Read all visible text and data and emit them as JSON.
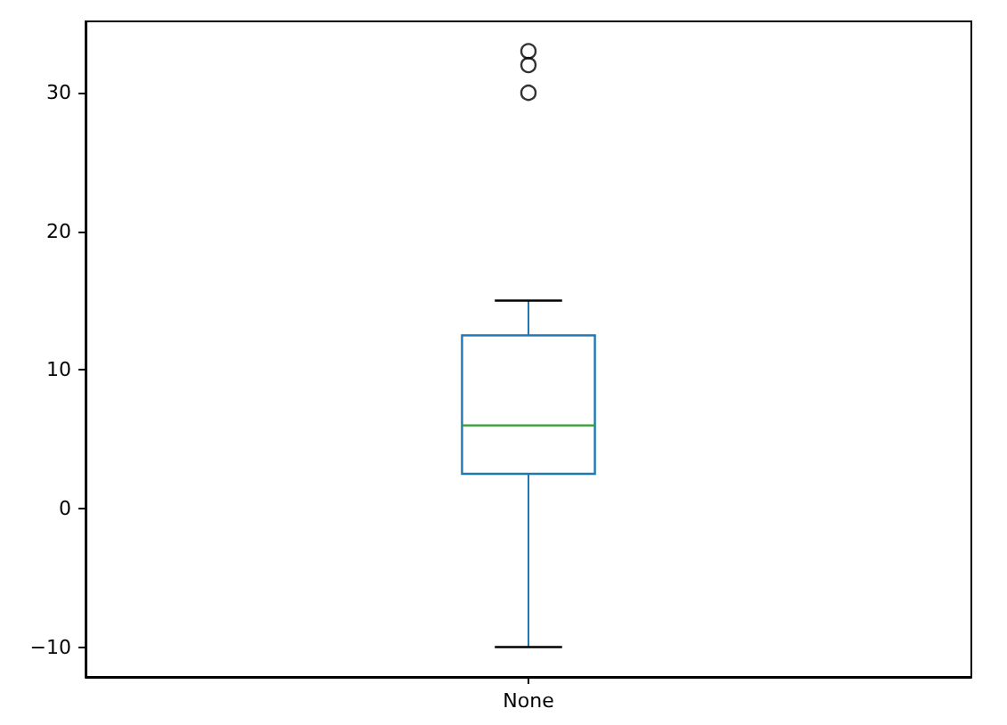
{
  "chart_data": {
    "type": "box",
    "categories": [
      "None"
    ],
    "series": [
      {
        "color": "#1f77b4",
        "boxes": [
          {
            "low": -10,
            "q1": 2.5,
            "median": 6,
            "q3": 12.5,
            "high": 15,
            "outliers": [
              30,
              32,
              33
            ]
          }
        ]
      }
    ],
    "ylim": [
      -12.15,
      35.15
    ],
    "yticks": [
      -10,
      0,
      10,
      20,
      30
    ],
    "grid": false
  }
}
